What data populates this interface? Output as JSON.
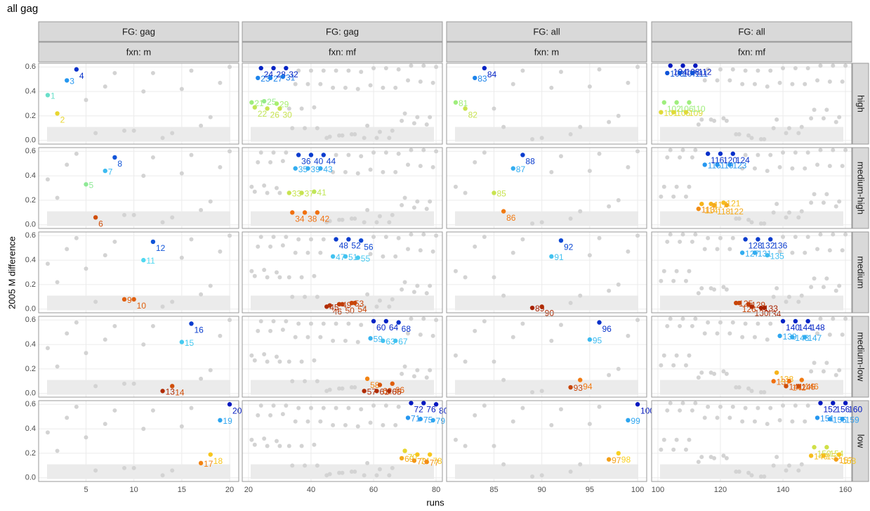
{
  "chart_data": {
    "type": "scatter",
    "title": "all gag",
    "xlabel": "runs",
    "ylabel": "2005 M difference",
    "ylim": [
      -0.03,
      0.63
    ],
    "yticks": [
      {
        "value": 0,
        "label": "0.0"
      },
      {
        "value": 0.2,
        "label": "0.2"
      },
      {
        "value": 0.4,
        "label": "0.4"
      },
      {
        "value": 0.6,
        "label": "0.6"
      }
    ],
    "grid": true,
    "background_color": "#d3d3d3",
    "shaded_band": [
      -0.01,
      0.11
    ],
    "color_scale": [
      {
        "value": 0,
        "color": "#a01a00"
      },
      {
        "value": 0.1,
        "color": "#f07010"
      },
      {
        "value": 0.2,
        "color": "#f8d020"
      },
      {
        "value": 0.3,
        "color": "#a8f070"
      },
      {
        "value": 0.4,
        "color": "#50d8f0"
      },
      {
        "value": 0.5,
        "color": "#2090f0"
      },
      {
        "value": 0.6,
        "color": "#0018c0"
      }
    ],
    "columns": [
      {
        "strip1": "FG: gag",
        "strip2": "fxn: m",
        "xlim": [
          0.05,
          20.95
        ],
        "xticks": [
          5,
          10,
          15,
          20
        ]
      },
      {
        "strip1": "FG: gag",
        "strip2": "fxn: mf",
        "xlim": [
          18,
          82
        ],
        "xticks": [
          20,
          40,
          60,
          80
        ]
      },
      {
        "strip1": "FG: all",
        "strip2": "fxn: m",
        "xlim": [
          80.05,
          100.95
        ],
        "xticks": [
          85,
          90,
          95,
          100
        ]
      },
      {
        "strip1": "FG: all",
        "strip2": "fxn: mf",
        "xlim": [
          98,
          162
        ],
        "xticks": [
          100,
          120,
          140,
          160
        ]
      }
    ],
    "rows": [
      "high",
      "medium-high",
      "medium",
      "medium-low",
      "low"
    ],
    "panels": [
      [
        {
          "x": [
            1,
            2,
            3,
            4
          ],
          "y": [
            0.37,
            0.22,
            0.49,
            0.58
          ]
        },
        {
          "x": [
            21,
            22,
            23,
            24,
            25,
            26,
            27,
            28,
            29,
            30,
            31,
            32
          ],
          "y": [
            0.31,
            0.27,
            0.51,
            0.59,
            0.32,
            0.26,
            0.51,
            0.59,
            0.3,
            0.26,
            0.52,
            0.59
          ]
        },
        {
          "x": [
            81,
            82,
            83,
            84
          ],
          "y": [
            0.31,
            0.26,
            0.51,
            0.59
          ]
        },
        {
          "x": [
            101,
            102,
            103,
            104,
            105,
            106,
            107,
            108,
            109,
            110,
            111,
            112
          ],
          "y": [
            0.23,
            0.31,
            0.55,
            0.61,
            0.23,
            0.31,
            0.55,
            0.61,
            0.23,
            0.31,
            0.55,
            0.61
          ]
        }
      ],
      [
        {
          "x": [
            5,
            6,
            7,
            8
          ],
          "y": [
            0.33,
            0.06,
            0.44,
            0.55
          ]
        },
        {
          "x": [
            33,
            34,
            35,
            36,
            37,
            38,
            39,
            40,
            41,
            42,
            43,
            44
          ],
          "y": [
            0.26,
            0.1,
            0.46,
            0.57,
            0.26,
            0.1,
            0.46,
            0.57,
            0.27,
            0.1,
            0.46,
            0.57
          ]
        },
        {
          "x": [
            85,
            86,
            87,
            88
          ],
          "y": [
            0.26,
            0.11,
            0.46,
            0.57
          ]
        },
        {
          "x": [
            113,
            114,
            115,
            116,
            117,
            118,
            119,
            120,
            121,
            122,
            123,
            124
          ],
          "y": [
            0.13,
            0.17,
            0.49,
            0.58,
            0.17,
            0.16,
            0.49,
            0.58,
            0.18,
            0.16,
            0.49,
            0.58
          ]
        }
      ],
      [
        {
          "x": [
            9,
            10,
            11,
            12
          ],
          "y": [
            0.08,
            0.08,
            0.4,
            0.55
          ]
        },
        {
          "x": [
            45,
            46,
            47,
            48,
            49,
            50,
            51,
            52,
            53,
            54,
            55,
            56
          ],
          "y": [
            0.02,
            0.03,
            0.43,
            0.57,
            0.04,
            0.04,
            0.43,
            0.57,
            0.05,
            0.05,
            0.42,
            0.56
          ]
        },
        {
          "x": [
            89,
            90,
            91,
            92
          ],
          "y": [
            0.01,
            0.02,
            0.43,
            0.56
          ]
        },
        {
          "x": [
            125,
            126,
            127,
            128,
            129,
            130,
            131,
            132,
            133,
            134,
            135,
            136
          ],
          "y": [
            0.05,
            0.05,
            0.46,
            0.57,
            0.04,
            0.02,
            0.46,
            0.57,
            0.01,
            0.01,
            0.44,
            0.57
          ]
        }
      ],
      [
        {
          "x": [
            13,
            14,
            15,
            16
          ],
          "y": [
            0.02,
            0.06,
            0.42,
            0.57
          ]
        },
        {
          "x": [
            57,
            58,
            59,
            60,
            61,
            62,
            63,
            64,
            65,
            66,
            67,
            68
          ],
          "y": [
            0.02,
            0.12,
            0.45,
            0.59,
            0.02,
            0.07,
            0.43,
            0.59,
            0.02,
            0.08,
            0.43,
            0.58
          ]
        },
        {
          "x": [
            93,
            94,
            95,
            96
          ],
          "y": [
            0.05,
            0.11,
            0.44,
            0.58
          ]
        },
        {
          "x": [
            137,
            138,
            139,
            140,
            141,
            142,
            143,
            144,
            145,
            146,
            147,
            148
          ],
          "y": [
            0.1,
            0.17,
            0.47,
            0.59,
            0.06,
            0.1,
            0.46,
            0.59,
            0.06,
            0.11,
            0.46,
            0.59
          ]
        }
      ],
      [
        {
          "x": [
            17,
            18,
            19,
            20
          ],
          "y": [
            0.12,
            0.19,
            0.47,
            0.6
          ]
        },
        {
          "x": [
            69,
            70,
            71,
            72,
            73,
            74,
            75,
            76,
            77,
            78,
            79,
            80
          ],
          "y": [
            0.16,
            0.22,
            0.49,
            0.61,
            0.14,
            0.19,
            0.48,
            0.61,
            0.13,
            0.19,
            0.47,
            0.6
          ]
        },
        {
          "x": [
            97,
            98,
            99,
            100
          ],
          "y": [
            0.15,
            0.2,
            0.47,
            0.6
          ]
        },
        {
          "x": [
            149,
            150,
            151,
            152,
            153,
            154,
            155,
            156,
            157,
            158,
            159,
            160
          ],
          "y": [
            0.18,
            0.25,
            0.49,
            0.61,
            0.18,
            0.25,
            0.48,
            0.61,
            0.15,
            0.19,
            0.48,
            0.61
          ]
        }
      ]
    ]
  }
}
